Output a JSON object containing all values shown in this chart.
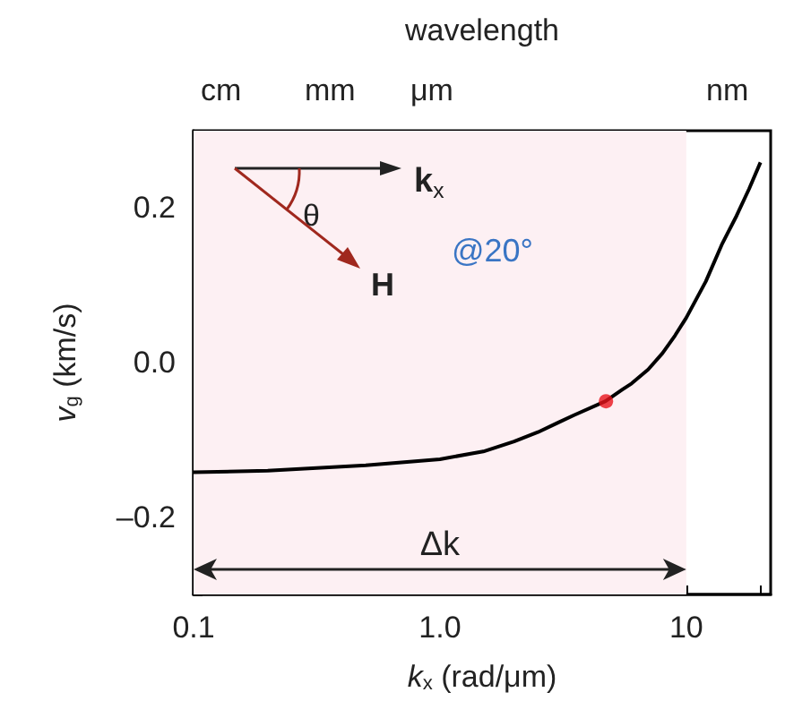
{
  "chart_data": {
    "type": "line",
    "x2label": "wavelength",
    "xlabel": "k$_{x}$ (rad/μm)",
    "ylabel": "v$_{g}$ (km/s)",
    "log": "x",
    "xlim": [
      0.1,
      22
    ],
    "ylim": [
      -0.3,
      0.3
    ],
    "xticks": [
      {
        "value": 0.1,
        "label": "0.1"
      },
      {
        "value": 0.2,
        "label": null
      },
      {
        "value": 0.3,
        "label": null
      },
      {
        "value": 0.4,
        "label": null
      },
      {
        "value": 0.5,
        "label": null
      },
      {
        "value": 0.6,
        "label": null
      },
      {
        "value": 0.7,
        "label": null
      },
      {
        "value": 0.8,
        "label": null
      },
      {
        "value": 0.9,
        "label": null
      },
      {
        "value": 1,
        "label": "1.0"
      },
      {
        "value": 2,
        "label": null
      },
      {
        "value": 3,
        "label": null
      },
      {
        "value": 4,
        "label": null
      },
      {
        "value": 5,
        "label": null
      },
      {
        "value": 6,
        "label": null
      },
      {
        "value": 7,
        "label": null
      },
      {
        "value": 8,
        "label": null
      },
      {
        "value": 9,
        "label": null
      },
      10,
      {
        "value": 20,
        "label": null
      }
    ],
    "yticks": [
      {
        "value": -0.3,
        "label": null
      },
      {
        "value": -0.2,
        "label": "–0.2"
      },
      {
        "value": -0.1,
        "label": null
      },
      {
        "value": 0,
        "label": "0.0"
      },
      {
        "value": 0.1,
        "label": null
      },
      {
        "value": 0.2,
        "label": "0.2"
      },
      {
        "value": 0.3,
        "label": null
      }
    ],
    "grid": false,
    "series": [
      {
        "type": "line",
        "color": "#000000",
        "marker": "none",
        "x": [
          0.1,
          0.2,
          0.5,
          1,
          1.5,
          2,
          2.5,
          3,
          3.5,
          4.7,
          5.5,
          6,
          7,
          8,
          9,
          10,
          12,
          14,
          16,
          18,
          20
        ],
        "values": [
          -0.142,
          -0.14,
          -0.133,
          -0.125,
          -0.115,
          -0.102,
          -0.09,
          -0.078,
          -0.068,
          -0.05,
          -0.035,
          -0.027,
          -0.009,
          0.012,
          0.035,
          0.058,
          0.105,
          0.154,
          0.19,
          0.225,
          0.259
        ]
      },
      {
        "type": "scatter",
        "color": "#e8141c",
        "marker": "circle",
        "x": [
          4.72
        ],
        "values": [
          -0.05
        ]
      }
    ],
    "bands": [
      {
        "axis": "x",
        "from": 0.1,
        "to": 10,
        "color": "#fdf0f3",
        "label": "Δk"
      }
    ],
    "annotations": [
      "k$_{x}$",
      "θ",
      "H",
      "@20°",
      "cm",
      "mm",
      "μm",
      "nm"
    ]
  }
}
